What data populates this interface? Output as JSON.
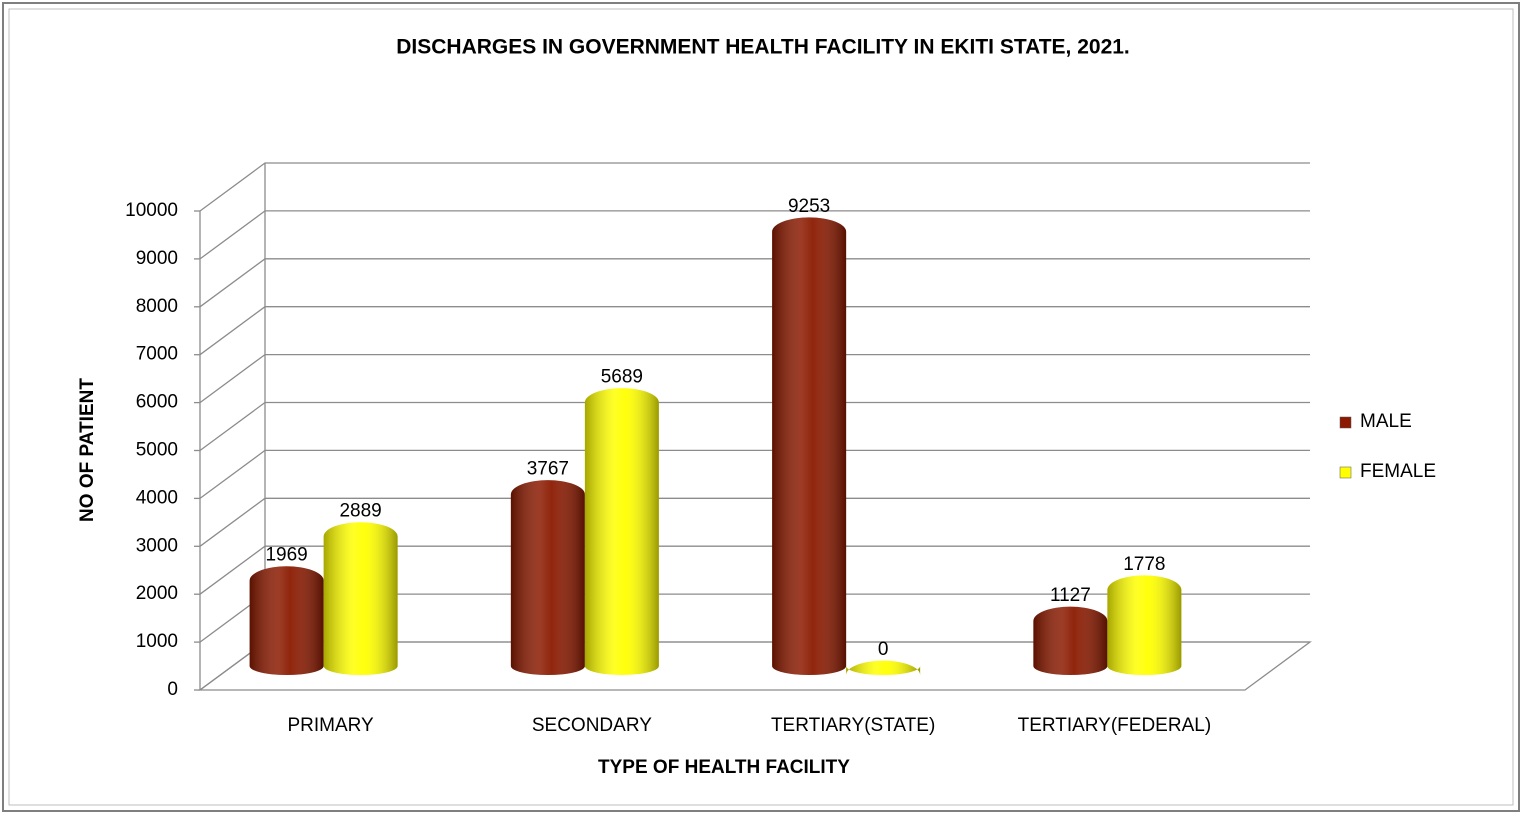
{
  "chart_data": {
    "type": "bar",
    "title": "DISCHARGES IN GOVERNMENT HEALTH FACILITY IN EKITI STATE, 2021.",
    "x_label": "TYPE OF HEALTH FACILITY",
    "y_label": "NO OF PATIENT",
    "categories": [
      "PRIMARY",
      "SECONDARY",
      "TERTIARY(STATE)",
      "TERTIARY(FEDERAL)"
    ],
    "series": [
      {
        "name": "MALE",
        "color": "#8b1a00",
        "values": [
          1969,
          3767,
          9253,
          1127
        ]
      },
      {
        "name": "FEMALE",
        "color": "#ffff00",
        "values": [
          2889,
          5689,
          0,
          1778
        ]
      }
    ],
    "ylim": [
      0,
      10000
    ],
    "yticks": [
      0,
      1000,
      2000,
      3000,
      4000,
      5000,
      6000,
      7000,
      8000,
      9000,
      10000
    ],
    "grid": true,
    "legend": "right"
  }
}
